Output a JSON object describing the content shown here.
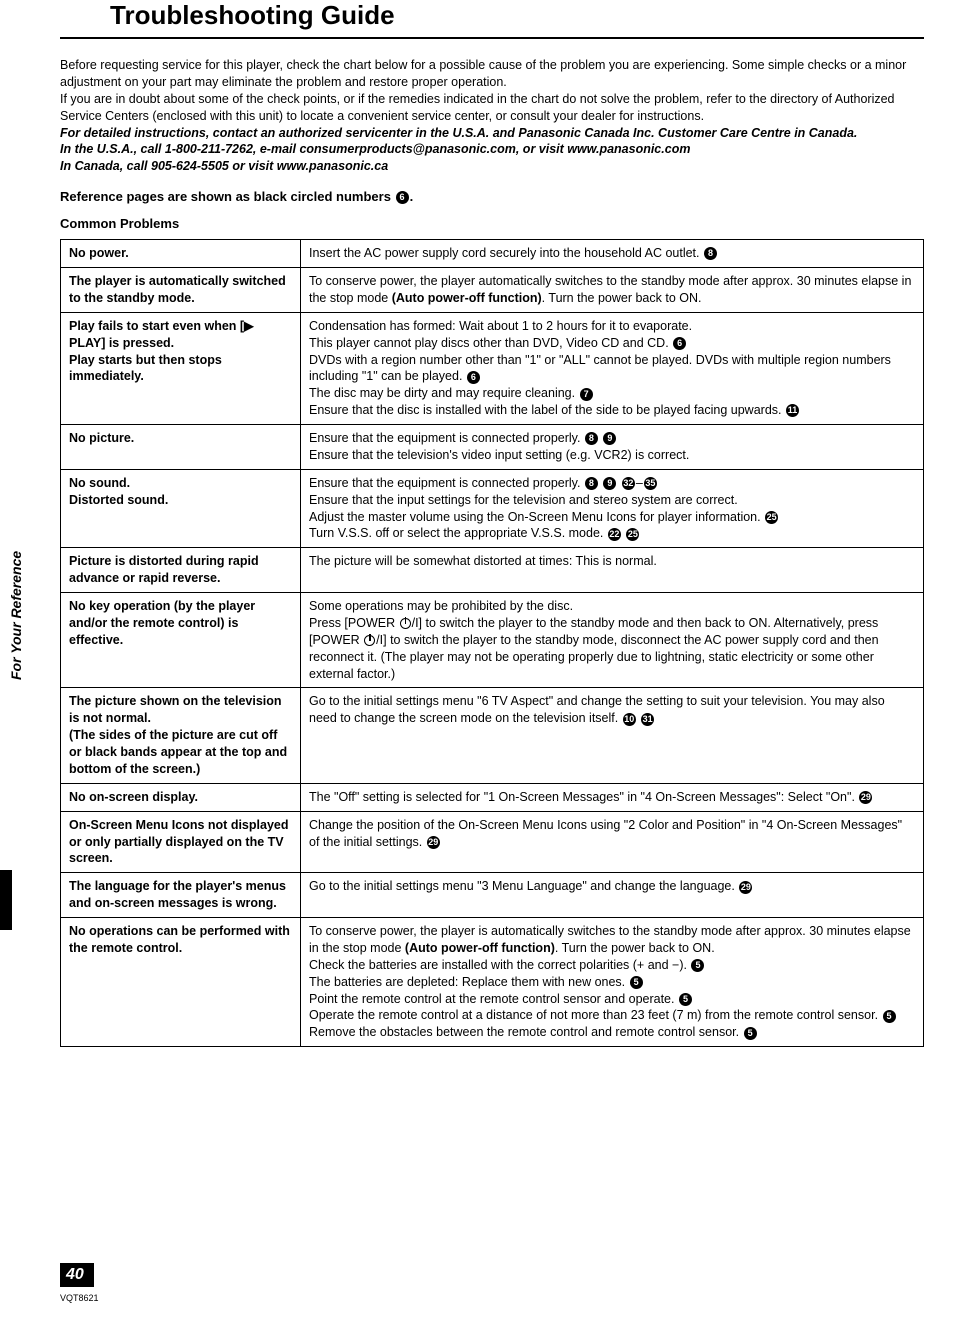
{
  "title": "Troubleshooting Guide",
  "intro": {
    "p1": "Before requesting service for this player, check the chart below for a possible cause of the problem you are experiencing. Some simple checks or a minor adjustment on your part may eliminate the problem and restore proper operation.",
    "p2": "If you are in doubt about some of the check points, or if the remedies indicated in the chart do not solve the problem, refer to the directory of Authorized Service Centers (enclosed with this unit) to locate a convenient service center, or consult your dealer for instructions.",
    "p3": "For detailed instructions, contact an authorized servicenter in the U.S.A. and Panasonic Canada Inc. Customer Care Centre in Canada.",
    "p4": "In the U.S.A., call 1-800-211-7262, e-mail consumerproducts@panasonic.com, or visit www.panasonic.com",
    "p5": "In Canada, call 905-624-5505 or visit www.panasonic.ca"
  },
  "refLine": "Reference pages are shown as black circled numbers",
  "refLineSuffix": ".",
  "sectionTitle": "Common Problems",
  "sideTab": "For Your Reference",
  "pageNum": "40",
  "docCode": "VQT8621",
  "rows": [
    {
      "problem": "No power.",
      "solution": "Insert the AC power supply cord securely into the household AC outlet. <c>8</c>"
    },
    {
      "problem": "The player is automatically switched to the standby mode.",
      "solution": "To conserve power, the player automatically switches to the standby mode after approx. 30 minutes elapse in the stop mode <b>(Auto power-off function)</b>. Turn the power back to ON."
    },
    {
      "problem": "Play fails to start even when [▶ PLAY] is pressed.<br>Play starts but then stops immediately.",
      "solution": "Condensation has formed: Wait about 1 to 2 hours for it to evaporate.<br>This player cannot play discs other than DVD, Video CD and CD. <c>6</c><br>DVDs with a region number other than \"1\" or \"ALL\" cannot be played. DVDs with multiple region numbers including \"1\" can be played. <c>6</c><br>The disc may be dirty and may require cleaning. <c>7</c><br>Ensure that the disc is installed with the label of the side to be played facing upwards. <c>11</c>"
    },
    {
      "problem": "No picture.",
      "solution": "Ensure that the equipment is connected properly. <c>8</c> <c>9</c><br>Ensure that the television's video input setting (e.g. VCR2) is correct."
    },
    {
      "problem": "No sound.<br>Distorted sound.",
      "solution": "Ensure that the equipment is connected properly. <c>8</c> <c>9</c> <c>32</c>–<c>35</c><br>Ensure that the input settings for the television and stereo system are correct.<br>Adjust the master volume using the On-Screen Menu Icons for player information. <c>25</c><br>Turn V.S.S. off or select the appropriate V.S.S. mode. <c>22</c> <c>25</c>"
    },
    {
      "problem": "Picture is distorted during rapid advance or rapid reverse.",
      "solution": "The picture will be somewhat distorted at times: This is normal."
    },
    {
      "problem": "No key operation (by the player and/or the remote control) is effective.",
      "solution": "Some operations may be prohibited by the disc.<br>Press [POWER <pw></pw>/I] to switch the player to the standby mode and then back to ON. Alternatively, press [POWER <pw></pw>/I] to switch the player to the standby mode, disconnect the AC power supply cord and then reconnect it. (The player may not be operating properly due to lightning, static electricity or some other external factor.)"
    },
    {
      "problem": "The picture shown on the television is not normal.<br>(The sides of the picture are cut off or black bands appear at the top and bottom of the screen.)",
      "solution": "Go to the initial settings menu \"6 TV Aspect\" and change the setting to suit your television. You may also need to change the screen mode on the television itself. <c>10</c> <c>31</c>"
    },
    {
      "problem": "No on-screen display.",
      "solution": "The \"Off\" setting is selected for \"1 On-Screen Messages\" in \"4 On-Screen Messages\": Select \"On\". <c>29</c>"
    },
    {
      "problem": "On-Screen Menu Icons not displayed or only partially displayed on the TV screen.",
      "solution": "Change the position of the On-Screen Menu Icons using \"2 Color and Position\" in \"4 On-Screen Messages\" of the initial settings. <c>29</c>"
    },
    {
      "problem": "The language for the player's menus and on-screen messages is wrong.",
      "solution": "Go to the initial settings menu \"3 Menu Language\" and change the language. <c>29</c>"
    },
    {
      "problem": "No operations can be performed with the remote control.",
      "solution": "To conserve power, the player is automatically switches to the standby mode after approx. 30 minutes elapse in the stop mode <b>(Auto power-off function)</b>. Turn the power back to ON.<br>Check the batteries are installed with the correct polarities (+ and −). <c>5</c><br>The batteries are depleted: Replace them with new ones. <c>5</c><br>Point the remote control at the remote control sensor and operate. <c>5</c><br>Operate the remote control at a distance of not more than 23 feet (7 m) from the remote control sensor. <c>5</c><br>Remove the obstacles between the remote control and remote control sensor. <c>5</c>"
    }
  ]
}
